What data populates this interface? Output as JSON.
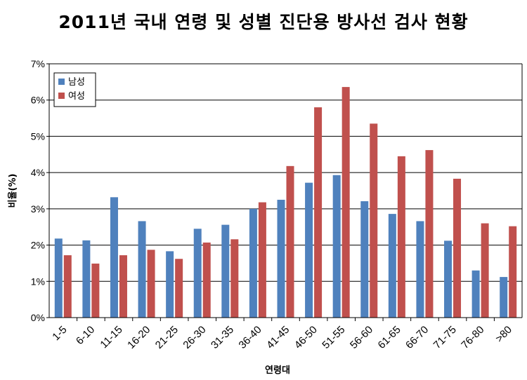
{
  "chart_data": {
    "type": "bar",
    "title": "2011년 국내 연령 및 성별 진단용 방사선 검사 현황",
    "xlabel": "연령대",
    "ylabel": "비율(%)",
    "ylim": [
      0,
      7
    ],
    "ytick_labels": [
      "0%",
      "1%",
      "2%",
      "3%",
      "4%",
      "5%",
      "6%",
      "7%"
    ],
    "grid": "horizontal",
    "legend_position": "top-left",
    "categories": [
      "1-5",
      "6-10",
      "11-15",
      "16-20",
      "21-25",
      "26-30",
      "31-35",
      "36-40",
      "41-45",
      "46-50",
      "51-55",
      "56-60",
      "61-65",
      "66-70",
      "71-75",
      "76-80",
      ">80"
    ],
    "series": [
      {
        "name": "남성",
        "color": "#4F81BD",
        "values": [
          2.18,
          2.13,
          3.32,
          2.66,
          1.83,
          2.45,
          2.56,
          3.0,
          3.25,
          3.72,
          3.93,
          3.21,
          2.86,
          2.66,
          2.12,
          1.3,
          1.12
        ]
      },
      {
        "name": "여성",
        "color": "#C0504D",
        "values": [
          1.72,
          1.49,
          1.72,
          1.87,
          1.62,
          2.07,
          2.16,
          3.18,
          4.18,
          5.8,
          6.36,
          5.35,
          4.45,
          4.62,
          3.83,
          2.6,
          2.52
        ]
      }
    ]
  }
}
